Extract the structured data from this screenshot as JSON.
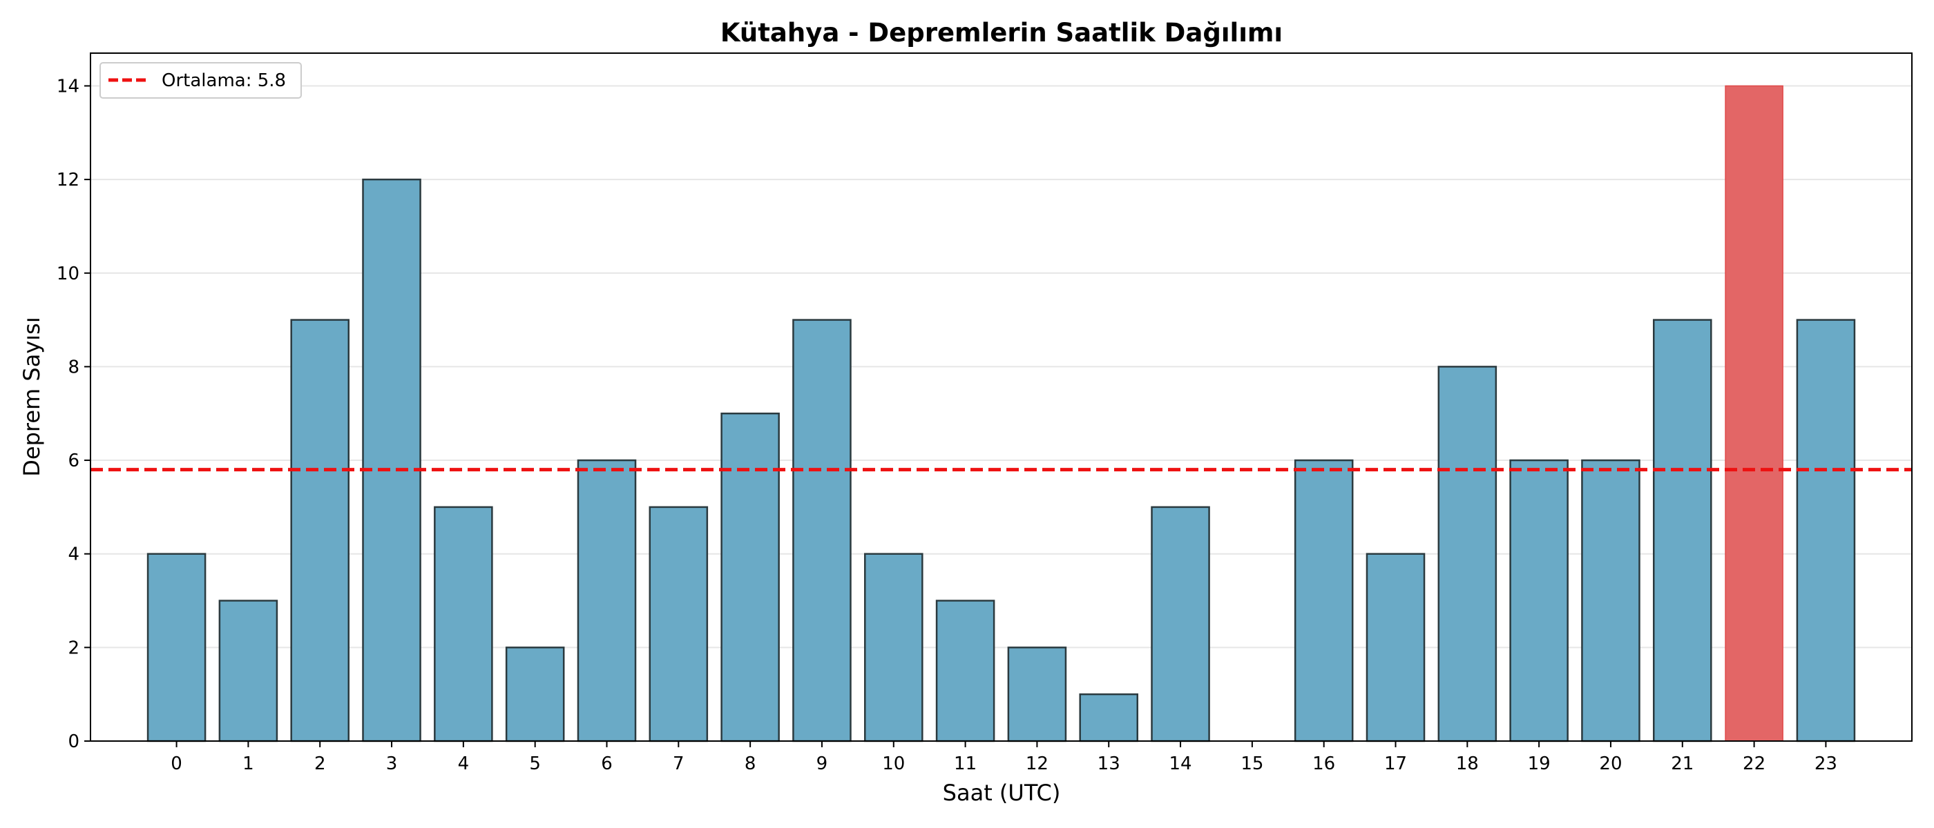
{
  "chart_data": {
    "type": "bar",
    "title": "Kütahya - Depremlerin Saatlik Dağılımı",
    "xlabel": "Saat (UTC)",
    "ylabel": "Deprem Sayısı",
    "categories": [
      "0",
      "1",
      "2",
      "3",
      "4",
      "5",
      "6",
      "7",
      "8",
      "9",
      "10",
      "11",
      "12",
      "13",
      "14",
      "15",
      "16",
      "17",
      "18",
      "19",
      "20",
      "21",
      "22",
      "23"
    ],
    "values": [
      4,
      3,
      9,
      12,
      5,
      2,
      6,
      5,
      7,
      9,
      4,
      3,
      2,
      1,
      5,
      0,
      6,
      4,
      8,
      6,
      6,
      9,
      14,
      9
    ],
    "highlight_index": 22,
    "ylim": [
      0,
      14.7
    ],
    "yticks": [
      0,
      2,
      4,
      6,
      8,
      10,
      12,
      14
    ],
    "grid": "y",
    "mean_line": {
      "value": 5.8,
      "label": "Ortalama: 5.8"
    },
    "legend_position": "top-left",
    "colors": {
      "bar": "#6aaac6",
      "bar_edge": "#2b3a3f",
      "highlight": "#e36666",
      "highlight_edge": "#e04848",
      "mean_line": "#ee1111",
      "grid": "#e6e6e6"
    }
  }
}
